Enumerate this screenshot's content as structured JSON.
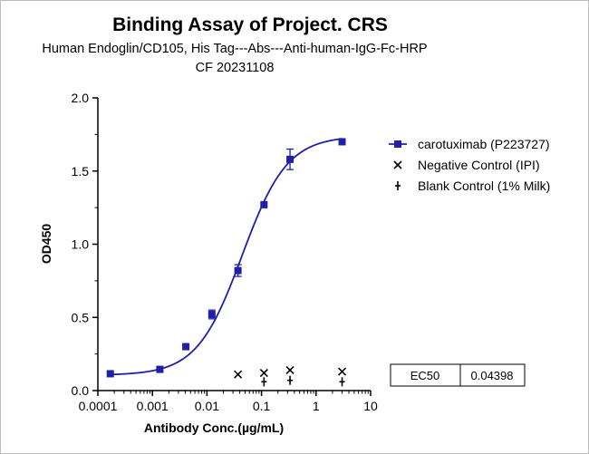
{
  "chart_data": {
    "type": "scatter",
    "title": "Binding Assay of Project. CRS",
    "subtitle_lines": [
      "Human Endoglin/CD105, His Tag---Abs---Anti-human-IgG-Fc-HRP",
      "CF 20231108"
    ],
    "xlabel": "Antibody Conc.(µg/mL)",
    "ylabel": "OD450",
    "x_scale": "log",
    "xlim": [
      0.0001,
      10
    ],
    "ylim": [
      0,
      2.0
    ],
    "x_ticks": [
      "0.0001",
      "0.001",
      "0.01",
      "0.1",
      "1",
      "10"
    ],
    "y_ticks": [
      "0.0",
      "0.5",
      "1.0",
      "1.5",
      "2.0"
    ],
    "grid": false,
    "legend_position": "right",
    "series": [
      {
        "name": "carotuximab (P223727)",
        "marker": "square",
        "color": "#1f1fa8",
        "x": [
          0.000169,
          0.00137,
          0.0041,
          0.0123,
          0.037,
          0.111,
          0.333,
          3.0
        ],
        "y": [
          0.115,
          0.145,
          0.3,
          0.52,
          0.82,
          1.27,
          1.58,
          1.7
        ],
        "error": [
          0.01,
          0.01,
          0.01,
          0.03,
          0.04,
          0.01,
          0.07,
          0.01
        ],
        "fit": {
          "bottom": 0.105,
          "top": 1.74,
          "ec50": 0.04398,
          "hill": 1.05
        }
      },
      {
        "name": "Negative Control (IPI)",
        "marker": "x",
        "color": "#000000",
        "x": [
          0.037,
          0.111,
          0.333,
          3.0
        ],
        "y": [
          0.11,
          0.12,
          0.14,
          0.13
        ]
      },
      {
        "name": "Blank Control (1% Milk)",
        "marker": "plus",
        "color": "#000000",
        "x": [
          0.111,
          0.333,
          3.0
        ],
        "y": [
          0.06,
          0.07,
          0.06
        ]
      }
    ],
    "results_table": {
      "label": "EC50",
      "value": "0.04398"
    }
  }
}
